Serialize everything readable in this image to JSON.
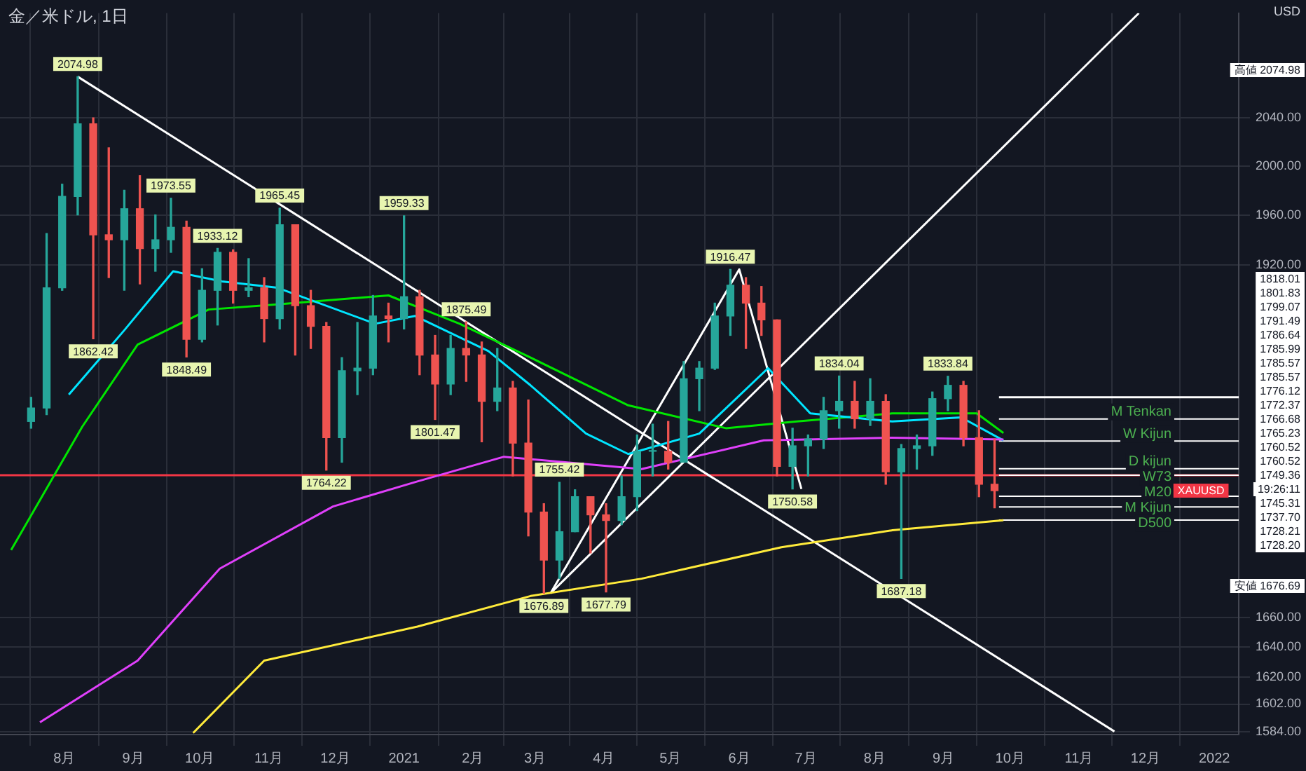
{
  "chart_data": {
    "type": "candlestick",
    "title": "金／米ドル, 1日",
    "ylabel": "USD",
    "log": true,
    "grid": true,
    "legend": false,
    "xlim": [
      "2020-07-03",
      "2022-01-12"
    ],
    "xticks": [
      {
        "value": "2020-08-01",
        "label": "8月"
      },
      {
        "value": "2020-09-01",
        "label": "9月"
      },
      {
        "value": "2020-10-01",
        "label": "10月"
      },
      {
        "value": "2020-11-01",
        "label": "11月"
      },
      {
        "value": "2020-12-01",
        "label": "12月"
      },
      {
        "value": "2021-01-01",
        "label": "2021"
      },
      {
        "value": "2021-02-01",
        "label": "2月"
      },
      {
        "value": "2021-03-01",
        "label": "3月"
      },
      {
        "value": "2021-04-01",
        "label": "4月"
      },
      {
        "value": "2021-05-01",
        "label": "5月"
      },
      {
        "value": "2021-06-01",
        "label": "6月"
      },
      {
        "value": "2021-07-01",
        "label": "7月"
      },
      {
        "value": "2021-08-01",
        "label": "8月"
      },
      {
        "value": "2021-09-01",
        "label": "9月"
      },
      {
        "value": "2021-10-01",
        "label": "10月"
      },
      {
        "value": "2021-11-01",
        "label": "11月"
      },
      {
        "value": "2021-12-01",
        "label": "12月"
      },
      {
        "value": "2022-01-01",
        "label": "2022"
      }
    ],
    "ylim": [
      1582,
      2130
    ],
    "yticks": [
      {
        "value": 1584,
        "label": "1584.00"
      },
      {
        "value": 1602,
        "label": "1602.00"
      },
      {
        "value": 1620,
        "label": "1620.00"
      },
      {
        "value": 1640,
        "label": "1640.00"
      },
      {
        "value": 1660,
        "label": "1660.00"
      },
      {
        "value": 1920,
        "label": "1920.00"
      },
      {
        "value": 1960,
        "label": "1960.00"
      },
      {
        "value": 2000,
        "label": "2000.00"
      },
      {
        "value": 2040,
        "label": "2040.00"
      }
    ],
    "x": [
      "2020-07-17",
      "2020-07-24",
      "2020-07-31",
      "2020-08-07",
      "2020-08-14",
      "2020-08-21",
      "2020-08-28",
      "2020-09-04",
      "2020-09-11",
      "2020-09-18",
      "2020-09-25",
      "2020-10-02",
      "2020-10-09",
      "2020-10-16",
      "2020-10-23",
      "2020-10-30",
      "2020-11-06",
      "2020-11-13",
      "2020-11-20",
      "2020-11-27",
      "2020-12-04",
      "2020-12-11",
      "2020-12-18",
      "2020-12-25",
      "2021-01-01",
      "2021-01-08",
      "2021-01-15",
      "2021-01-22",
      "2021-01-29",
      "2021-02-05",
      "2021-02-12",
      "2021-02-19",
      "2021-02-26",
      "2021-03-05",
      "2021-03-12",
      "2021-03-19",
      "2021-03-26",
      "2021-04-02",
      "2021-04-09",
      "2021-04-16",
      "2021-04-23",
      "2021-04-30",
      "2021-05-07",
      "2021-05-14",
      "2021-05-21",
      "2021-05-28",
      "2021-06-04",
      "2021-06-11",
      "2021-06-18",
      "2021-06-25",
      "2021-07-02",
      "2021-07-09",
      "2021-07-16",
      "2021-07-23",
      "2021-07-30",
      "2021-08-06",
      "2021-08-13",
      "2021-08-20",
      "2021-08-27",
      "2021-09-03",
      "2021-09-10",
      "2021-09-17",
      "2021-09-24"
    ],
    "ohlc": [
      [
        1800,
        1818,
        1795,
        1810
      ],
      [
        1810,
        1945,
        1805,
        1902
      ],
      [
        1902,
        1985,
        1900,
        1975
      ],
      [
        1975,
        2074.98,
        1960,
        2035
      ],
      [
        2035,
        2040,
        1862.42,
        1944
      ],
      [
        1944,
        2015,
        1910,
        1940
      ],
      [
        1940,
        1980,
        1900,
        1965
      ],
      [
        1965,
        1992,
        1905,
        1933
      ],
      [
        1933,
        1960,
        1915,
        1940
      ],
      [
        1940,
        1973.55,
        1930,
        1950
      ],
      [
        1950,
        1955,
        1848.49,
        1862
      ],
      [
        1862,
        1917,
        1860,
        1900
      ],
      [
        1900,
        1933.12,
        1873,
        1930
      ],
      [
        1930,
        1932,
        1890,
        1900
      ],
      [
        1900,
        1925,
        1895,
        1902
      ],
      [
        1902,
        1910,
        1860,
        1878
      ],
      [
        1878,
        1965.45,
        1870,
        1952
      ],
      [
        1952,
        1952,
        1850,
        1888
      ],
      [
        1888,
        1900,
        1855,
        1872
      ],
      [
        1872,
        1875,
        1764.22,
        1788
      ],
      [
        1788,
        1848,
        1770,
        1838
      ],
      [
        1838,
        1875,
        1820,
        1840
      ],
      [
        1840,
        1896,
        1835,
        1880
      ],
      [
        1880,
        1890,
        1860,
        1878
      ],
      [
        1878,
        1959.33,
        1870,
        1895
      ],
      [
        1895,
        1900,
        1835,
        1850
      ],
      [
        1850,
        1865,
        1801.47,
        1828
      ],
      [
        1828,
        1865,
        1820,
        1855
      ],
      [
        1855,
        1875.49,
        1830,
        1850
      ],
      [
        1850,
        1860,
        1785,
        1815
      ],
      [
        1815,
        1855,
        1808,
        1825
      ],
      [
        1825,
        1830,
        1760,
        1784
      ],
      [
        1784,
        1816,
        1717,
        1734
      ],
      [
        1734,
        1740,
        1676.89,
        1700
      ],
      [
        1700,
        1755.42,
        1687,
        1720
      ],
      [
        1720,
        1750,
        1720,
        1745
      ],
      [
        1745,
        1745,
        1705,
        1732
      ],
      [
        1732,
        1740,
        1677.79,
        1728
      ],
      [
        1728,
        1760,
        1725,
        1745
      ],
      [
        1745,
        1790,
        1735,
        1778
      ],
      [
        1778,
        1798,
        1760,
        1778
      ],
      [
        1778,
        1800,
        1765,
        1770
      ],
      [
        1770,
        1845,
        1770,
        1832
      ],
      [
        1832,
        1845,
        1808,
        1840
      ],
      [
        1840,
        1890,
        1839,
        1880
      ],
      [
        1880,
        1916.47,
        1865,
        1904
      ],
      [
        1904,
        1910,
        1855,
        1890
      ],
      [
        1890,
        1903,
        1865,
        1877
      ],
      [
        1877,
        1877,
        1760,
        1767
      ],
      [
        1767,
        1795,
        1750.58,
        1782
      ],
      [
        1782,
        1790,
        1760,
        1787
      ],
      [
        1787,
        1818,
        1780,
        1808
      ],
      [
        1808,
        1834.04,
        1795,
        1815
      ],
      [
        1815,
        1830,
        1795,
        1802
      ],
      [
        1802,
        1832,
        1797,
        1815
      ],
      [
        1815,
        1820,
        1754,
        1763
      ],
      [
        1763,
        1783,
        1687.18,
        1780
      ],
      [
        1780,
        1790,
        1765,
        1782
      ],
      [
        1782,
        1822,
        1775,
        1817
      ],
      [
        1817,
        1833.84,
        1808,
        1827
      ],
      [
        1827,
        1830,
        1782,
        1788
      ],
      [
        1788,
        1808,
        1745,
        1754
      ],
      [
        1754,
        1787,
        1737,
        1749.36
      ]
    ],
    "series": [
      {
        "type": "line",
        "color": "#e040fb",
        "x": [
          "2020-07-21",
          "2020-09-03",
          "2020-10-10",
          "2020-11-30",
          "2021-01-07",
          "2021-02-15",
          "2021-04-18",
          "2021-06-12",
          "2021-08-09",
          "2021-09-28"
        ],
        "values": [
          1590,
          1631,
          1694,
          1738,
          1756,
          1774,
          1765,
          1786,
          1788,
          1786.64
        ]
      },
      {
        "type": "line",
        "color": "#ffeb3b",
        "x": [
          "2020-09-28",
          "2020-10-30",
          "2021-01-07",
          "2021-02-27",
          "2021-04-18",
          "2021-06-20",
          "2021-08-09",
          "2021-09-28"
        ],
        "values": [
          1583,
          1631,
          1654,
          1675,
          1687,
          1709,
          1721,
          1728.2
        ]
      },
      {
        "type": "line",
        "color": "#00e5ff",
        "x": [
          "2020-08-03",
          "2020-08-28",
          "2020-09-19",
          "2020-10-11",
          "2020-11-05",
          "2020-12-19",
          "2021-01-06",
          "2021-02-08",
          "2021-02-27",
          "2021-03-24",
          "2021-04-12",
          "2021-05-14",
          "2021-06-14",
          "2021-07-03",
          "2021-08-09",
          "2021-09-09",
          "2021-09-28"
        ],
        "values": [
          1820,
          1869,
          1915,
          1907,
          1902,
          1874,
          1880,
          1853,
          1827,
          1791,
          1776,
          1791,
          1840,
          1806,
          1800,
          1803,
          1785.99
        ]
      },
      {
        "type": "line",
        "color": "#00e600",
        "x": [
          "2020-07-08",
          "2020-08-09",
          "2020-09-03",
          "2020-10-05",
          "2020-11-05",
          "2020-12-25",
          "2021-01-26",
          "2021-02-27",
          "2021-04-12",
          "2021-05-26",
          "2021-06-27",
          "2021-08-09",
          "2021-09-16",
          "2021-09-28"
        ],
        "values": [
          1707,
          1796,
          1858,
          1885,
          1889,
          1896,
          1874,
          1848,
          1812,
          1795,
          1800,
          1806,
          1806,
          1791.49
        ]
      },
      {
        "type": "line",
        "color": "#ffffff",
        "x": [
          "2020-08-07",
          "2021-11-17"
        ],
        "values": [
          2074.98,
          1584
        ]
      },
      {
        "type": "line",
        "color": "#ffffff",
        "x": [
          "2021-03-08",
          "2021-11-28"
        ],
        "values": [
          1676.89,
          2130
        ]
      },
      {
        "type": "line",
        "color": "#ffffff",
        "x": [
          "2021-03-08",
          "2021-06-01",
          "2021-06-29"
        ],
        "values": [
          1676.89,
          1916.47,
          1750.58
        ]
      },
      {
        "type": "line",
        "color": "#ffffff",
        "x": [
          "2021-09-26",
          "2022-01-12"
        ],
        "values": [
          1818.01,
          1818.01
        ]
      },
      {
        "type": "line",
        "name": "M Tenkan",
        "color": "#ffffff",
        "x": [
          "2021-09-26",
          "2022-01-12"
        ],
        "values": [
          1801.83,
          1801.83
        ]
      },
      {
        "type": "line",
        "name": "W Kijun",
        "color": "#ffffff",
        "x": [
          "2021-09-26",
          "2022-01-12"
        ],
        "values": [
          1785.57,
          1785.57
        ]
      },
      {
        "type": "line",
        "name": "D kijun",
        "color": "#ffffff",
        "x": [
          "2021-09-26",
          "2022-01-12"
        ],
        "values": [
          1765.23,
          1765.23
        ]
      },
      {
        "type": "line",
        "name": "W73",
        "color": "#ffffff",
        "x": [
          "2021-09-26",
          "2022-01-12"
        ],
        "values": [
          1760.52,
          1760.52
        ]
      },
      {
        "type": "line",
        "name": "M20",
        "color": "#ffffff",
        "x": [
          "2021-09-26",
          "2022-01-12"
        ],
        "values": [
          1745.31,
          1745.31
        ]
      },
      {
        "type": "line",
        "name": "M Kijun",
        "color": "#ffffff",
        "x": [
          "2021-09-26",
          "2022-01-12"
        ],
        "values": [
          1737.7,
          1737.7
        ]
      },
      {
        "type": "line",
        "name": "D500",
        "color": "#ffffff",
        "x": [
          "2021-09-26",
          "2022-01-12"
        ],
        "values": [
          1728.21,
          1728.21
        ]
      }
    ],
    "ref_lines": [
      {
        "axis": "y",
        "value": 1760.52,
        "color": "#f23645"
      }
    ],
    "annotations": [
      {
        "text": "2074.98",
        "x": "2020-08-07",
        "y": 2074.98
      },
      {
        "text": "1862.42",
        "x": "2020-08-14",
        "y": 1862.42
      },
      {
        "text": "1973.55",
        "x": "2020-09-18",
        "y": 1973.55
      },
      {
        "text": "1848.49",
        "x": "2020-09-25",
        "y": 1848.49
      },
      {
        "text": "1933.12",
        "x": "2020-10-09",
        "y": 1933.12
      },
      {
        "text": "1965.45",
        "x": "2020-11-06",
        "y": 1965.45
      },
      {
        "text": "1764.22",
        "x": "2020-11-27",
        "y": 1764.22
      },
      {
        "text": "1959.33",
        "x": "2021-01-01",
        "y": 1959.33
      },
      {
        "text": "1801.47",
        "x": "2021-01-15",
        "y": 1801.47
      },
      {
        "text": "1875.49",
        "x": "2021-01-29",
        "y": 1875.49
      },
      {
        "text": "1676.89",
        "x": "2021-03-05",
        "y": 1676.89
      },
      {
        "text": "1755.42",
        "x": "2021-03-12",
        "y": 1755.42
      },
      {
        "text": "1677.79",
        "x": "2021-04-02",
        "y": 1677.79
      },
      {
        "text": "1916.47",
        "x": "2021-05-28",
        "y": 1916.47
      },
      {
        "text": "1750.58",
        "x": "2021-06-25",
        "y": 1750.58
      },
      {
        "text": "1834.04",
        "x": "2021-07-16",
        "y": 1834.04
      },
      {
        "text": "1687.18",
        "x": "2021-08-13",
        "y": 1687.18
      },
      {
        "text": "1833.84",
        "x": "2021-09-03",
        "y": 1833.84
      },
      {
        "text": "XAUUSD",
        "x": "2021-12-26",
        "y": 1749.36
      },
      "高値 2074.98",
      "1818.01",
      "1801.83",
      "1799.07",
      "1791.49",
      "1786.64",
      "1785.99",
      "1785.57",
      "1785.57",
      "1776.12",
      "1772.37",
      "1766.68",
      "1765.23",
      "1760.52",
      "1760.52",
      "1749.36",
      "19:26:11",
      "1745.31",
      "1737.70",
      "1728.21",
      "1728.20",
      "安値 1676.69"
    ]
  }
}
